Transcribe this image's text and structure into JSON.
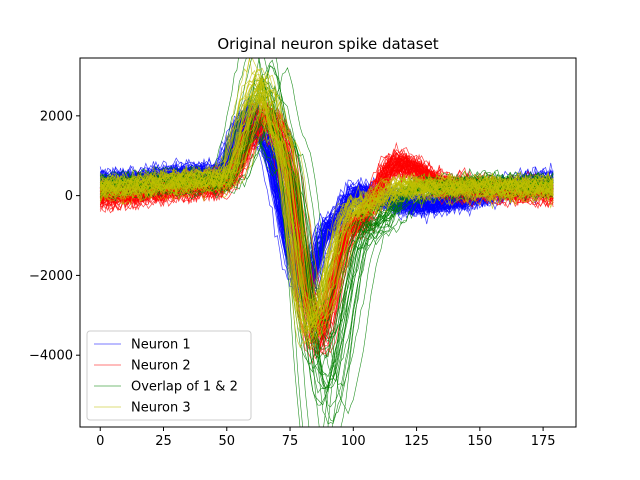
{
  "chart_data": {
    "type": "line",
    "title": "Original neuron spike dataset",
    "xlabel": "",
    "ylabel": "",
    "xlim": [
      -8,
      188
    ],
    "ylim": [
      -5800,
      3450
    ],
    "x_ticks": [
      0,
      25,
      50,
      75,
      100,
      125,
      150,
      175
    ],
    "x_tick_labels": [
      "0",
      "25",
      "50",
      "75",
      "100",
      "125",
      "150",
      "175"
    ],
    "y_ticks": [
      -4000,
      -2000,
      0,
      2000
    ],
    "y_tick_labels": [
      "−4000",
      "−2000",
      "0",
      "2000"
    ],
    "grid": false,
    "legend_position": "lower-left",
    "x_range": [
      0,
      179
    ],
    "series": [
      {
        "name": "Neuron 1",
        "color": "#0000ff",
        "trace_count": 60,
        "template": {
          "x": [
            0,
            45,
            58,
            62,
            80,
            90,
            100,
            125,
            179
          ],
          "y": [
            300,
            500,
            1900,
            1500,
            -2300,
            -800,
            0,
            -250,
            300
          ]
        }
      },
      {
        "name": "Neuron 2",
        "color": "#ff0000",
        "trace_count": 60,
        "template": {
          "x": [
            0,
            48,
            66,
            70,
            87,
            100,
            118,
            140,
            179
          ],
          "y": [
            0,
            250,
            1950,
            1700,
            -3400,
            -800,
            800,
            200,
            100
          ]
        }
      },
      {
        "name": "Overlap of 1 & 2",
        "color": "#008000",
        "trace_count": 30,
        "template": {
          "x": [
            0,
            48,
            65,
            72,
            88,
            105,
            125,
            150,
            179
          ],
          "y": [
            300,
            400,
            2700,
            1200,
            -4800,
            -800,
            200,
            300,
            300
          ]
        }
      },
      {
        "name": "Neuron 3",
        "color": "#bfbf00",
        "trace_count": 35,
        "template": {
          "x": [
            0,
            48,
            64,
            70,
            83,
            100,
            120,
            150,
            179
          ],
          "y": [
            200,
            400,
            2700,
            1500,
            -3200,
            -300,
            200,
            200,
            200
          ]
        }
      }
    ]
  }
}
